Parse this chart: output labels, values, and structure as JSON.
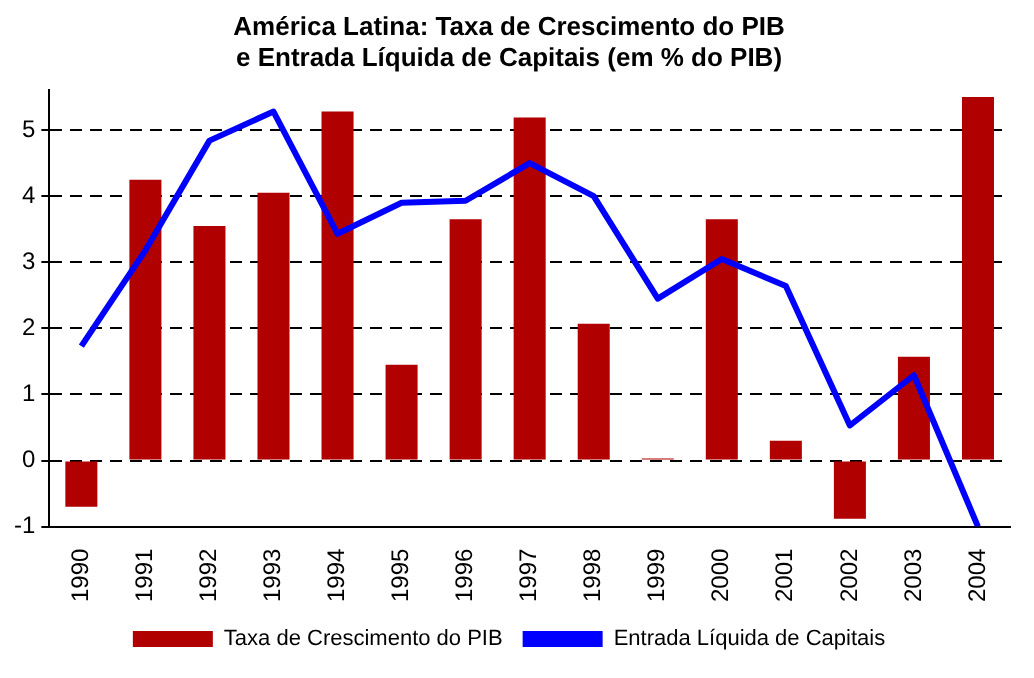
{
  "chart_data": {
    "type": "bar",
    "title": "América Latina: Taxa de Crescimento do PIB\ne Entrada Líquida de Capitais (em % do PIB)",
    "categories": [
      "1990",
      "1991",
      "1992",
      "1993",
      "1994",
      "1995",
      "1996",
      "1997",
      "1998",
      "1999",
      "2000",
      "2001",
      "2002",
      "2003",
      "2004"
    ],
    "series": [
      {
        "name": "Taxa de Crescimento do PIB",
        "color": "#b00000",
        "values": [
          -0.7,
          4.25,
          3.55,
          4.05,
          5.28,
          1.45,
          3.65,
          5.19,
          2.07,
          0.03,
          3.65,
          0.3,
          -0.88,
          1.57,
          5.5
        ]
      },
      {
        "name": "Entrada Líquida de Capitais",
        "type": "line",
        "color": "#0000ff",
        "values": [
          1.73,
          3.18,
          4.84,
          5.28,
          3.43,
          3.9,
          3.93,
          4.5,
          4.0,
          2.45,
          3.05,
          2.64,
          0.53,
          1.29,
          -1
        ]
      }
    ],
    "ylim": [
      -1,
      5.6
    ],
    "yticks": [
      -1,
      0,
      1,
      2,
      3,
      4,
      5
    ],
    "grid": "y",
    "legend": "bottom",
    "marker": "none",
    "line_style": "solid"
  }
}
